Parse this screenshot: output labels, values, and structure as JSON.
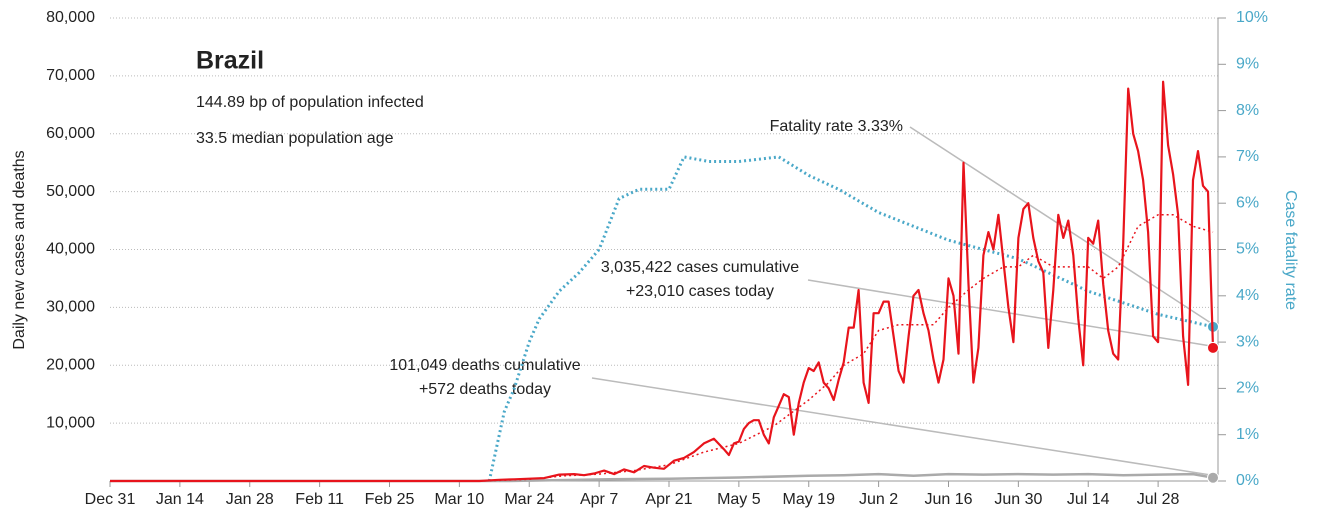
{
  "chart_data": {
    "type": "line",
    "title": "Brazil",
    "subtitle": [
      "144.89 bp of population infected",
      "33.5 median population age"
    ],
    "y_label": "Daily new cases and deaths",
    "y2_label": "Case fatality rate",
    "annotations": [
      {
        "lines": [
          "Fatality rate 3.33%"
        ]
      },
      {
        "lines": [
          "3,035,422 cases cumulative",
          "+23,010 cases today"
        ]
      },
      {
        "lines": [
          "101,049 deaths cumulative",
          "+572 deaths today"
        ]
      }
    ],
    "xlim": [
      0,
      222
    ],
    "xticks": [
      {
        "value": 0,
        "label": "Dec 31"
      },
      {
        "value": 14,
        "label": "Jan 14"
      },
      {
        "value": 28,
        "label": "Jan 28"
      },
      {
        "value": 42,
        "label": "Feb 11"
      },
      {
        "value": 56,
        "label": "Feb 25"
      },
      {
        "value": 70,
        "label": "Mar 10"
      },
      {
        "value": 84,
        "label": "Mar 24"
      },
      {
        "value": 98,
        "label": "Apr 7"
      },
      {
        "value": 112,
        "label": "Apr 21"
      },
      {
        "value": 126,
        "label": "May 5"
      },
      {
        "value": 140,
        "label": "May 19"
      },
      {
        "value": 154,
        "label": "Jun 2"
      },
      {
        "value": 168,
        "label": "Jun 16"
      },
      {
        "value": 182,
        "label": "Jun 30"
      },
      {
        "value": 196,
        "label": "Jul 14"
      },
      {
        "value": 210,
        "label": "Jul 28"
      }
    ],
    "ylim": [
      0,
      80000
    ],
    "yticks": [
      {
        "value": 10000,
        "label": "10,000"
      },
      {
        "value": 20000,
        "label": "20,000"
      },
      {
        "value": 30000,
        "label": "30,000"
      },
      {
        "value": 40000,
        "label": "40,000"
      },
      {
        "value": 50000,
        "label": "50,000"
      },
      {
        "value": 60000,
        "label": "60,000"
      },
      {
        "value": 70000,
        "label": "70,000"
      },
      {
        "value": 80000,
        "label": "80,000"
      }
    ],
    "y2lim": [
      0,
      10
    ],
    "y2ticks": [
      {
        "value": 0,
        "label": "0%"
      },
      {
        "value": 1,
        "label": "1%"
      },
      {
        "value": 2,
        "label": "2%"
      },
      {
        "value": 3,
        "label": "3%"
      },
      {
        "value": 4,
        "label": "4%"
      },
      {
        "value": 5,
        "label": "5%"
      },
      {
        "value": 6,
        "label": "6%"
      },
      {
        "value": 7,
        "label": "7%"
      },
      {
        "value": 8,
        "label": "8%"
      },
      {
        "value": 9,
        "label": "9%"
      },
      {
        "value": 10,
        "label": "10%"
      }
    ],
    "grid": true,
    "y2_color": "#4aa8c8",
    "series": [
      {
        "color": "#aaaaaa",
        "dash": "solid",
        "width": 2.5,
        "end_dot": true,
        "x": [
          0,
          80,
          100,
          112,
          126,
          140,
          147,
          154,
          161,
          168,
          175,
          182,
          189,
          196,
          203,
          210,
          217,
          221
        ],
        "values": [
          0,
          0,
          300,
          400,
          600,
          900,
          1000,
          1200,
          900,
          1200,
          1100,
          1200,
          1100,
          1200,
          1000,
          1100,
          1200,
          572
        ]
      },
      {
        "color": "#4aa8c8",
        "dash": "dotted",
        "width": 3,
        "axis": "y2",
        "end_dot": true,
        "x": [
          76,
          79,
          81,
          84,
          86,
          90,
          94,
          98,
          102,
          106,
          112,
          115,
          120,
          126,
          134,
          140,
          146,
          154,
          161,
          168,
          175,
          182,
          196,
          210,
          221
        ],
        "values": [
          0,
          1.5,
          2,
          3,
          3.5,
          4.1,
          4.5,
          5,
          6.1,
          6.3,
          6.3,
          7,
          6.9,
          6.9,
          7,
          6.6,
          6.3,
          5.8,
          5.5,
          5.2,
          5,
          4.8,
          4.1,
          3.6,
          3.33
        ]
      },
      {
        "color": "#e8141c",
        "dash": "dotted",
        "width": 1.5,
        "x": [
          74,
          84,
          91,
          98,
          105,
          112,
          119,
          126,
          133,
          140,
          144,
          147,
          151,
          154,
          158,
          161,
          165,
          168,
          172,
          175,
          179,
          182,
          185,
          189,
          193,
          196,
          199,
          202,
          206,
          210,
          213,
          217,
          221
        ],
        "values": [
          0,
          300,
          900,
          1200,
          1800,
          2800,
          5000,
          6500,
          9500,
          14000,
          17000,
          20000,
          22000,
          26000,
          27000,
          27000,
          27000,
          30000,
          33000,
          35000,
          37000,
          37000,
          39000,
          37000,
          37000,
          37000,
          35000,
          37000,
          44000,
          46000,
          46000,
          44000,
          43000
        ]
      },
      {
        "color": "#e8141c",
        "dash": "solid",
        "width": 2.2,
        "end_dot": true,
        "x": [
          0,
          74,
          78,
          81,
          84,
          87,
          90,
          93,
          95,
          97,
          99,
          101,
          103,
          105,
          107,
          109,
          111,
          113,
          115,
          117,
          119,
          121,
          123,
          124,
          125,
          126,
          127,
          128,
          129,
          130,
          131,
          132,
          133,
          134,
          135,
          136,
          137,
          138,
          139,
          140,
          141,
          142,
          143,
          144,
          145,
          146,
          147,
          148,
          149,
          150,
          151,
          152,
          153,
          154,
          155,
          156,
          157,
          158,
          159,
          160,
          161,
          162,
          163,
          164,
          165,
          166,
          167,
          168,
          169,
          170,
          171,
          172,
          173,
          174,
          175,
          176,
          177,
          178,
          179,
          180,
          181,
          182,
          183,
          184,
          185,
          186,
          187,
          188,
          189,
          190,
          191,
          192,
          193,
          194,
          195,
          196,
          197,
          198,
          199,
          200,
          201,
          202,
          203,
          204,
          205,
          206,
          207,
          208,
          209,
          210,
          211,
          212,
          213,
          214,
          215,
          216,
          217,
          218,
          219,
          220,
          221
        ],
        "values": [
          0,
          0,
          200,
          300,
          400,
          500,
          1100,
          1200,
          1000,
          1300,
          1800,
          1200,
          2000,
          1500,
          2600,
          2300,
          2100,
          3500,
          4000,
          5000,
          6500,
          7300,
          5500,
          4500,
          6500,
          6800,
          9000,
          10000,
          10500,
          10500,
          8000,
          6500,
          11000,
          13000,
          15000,
          14500,
          8000,
          13500,
          17000,
          19500,
          19000,
          20500,
          17000,
          16000,
          14000,
          17500,
          20500,
          26500,
          26500,
          33000,
          17000,
          13500,
          29000,
          29000,
          31000,
          31000,
          25000,
          19000,
          17000,
          25000,
          32000,
          33000,
          29000,
          26000,
          21000,
          17000,
          21000,
          35000,
          32000,
          22000,
          55000,
          34000,
          17000,
          23000,
          39000,
          43000,
          40000,
          46000,
          38000,
          30000,
          24000,
          42000,
          47000,
          48000,
          42000,
          38000,
          36000,
          23000,
          33000,
          46000,
          42000,
          45000,
          39000,
          28000,
          20000,
          42000,
          41000,
          45000,
          34000,
          26000,
          22000,
          21000,
          41000,
          67800,
          60000,
          57000,
          52000,
          43000,
          25000,
          24000,
          69000,
          58000,
          53000,
          46000,
          25000,
          16600,
          52000,
          57000,
          51000,
          50000,
          23010
        ]
      }
    ]
  }
}
